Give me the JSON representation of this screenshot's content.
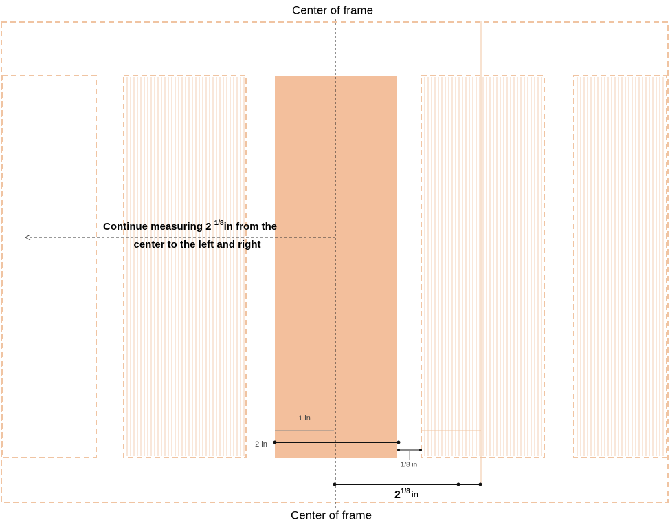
{
  "labels": {
    "top": "Center of frame",
    "bottom": "Center of frame"
  },
  "instruction": {
    "line1_start": "Continue measuring 2 ",
    "line1_fraction": "1/8",
    "line1_end": "in from the",
    "line2": "center to the left and right"
  },
  "dimensions": {
    "one_inch": "1 in",
    "two_inch": "2 in",
    "eighth_inch": "1/8 in",
    "total_whole": "2",
    "total_fraction": "1/8",
    "total_unit": "in"
  }
}
